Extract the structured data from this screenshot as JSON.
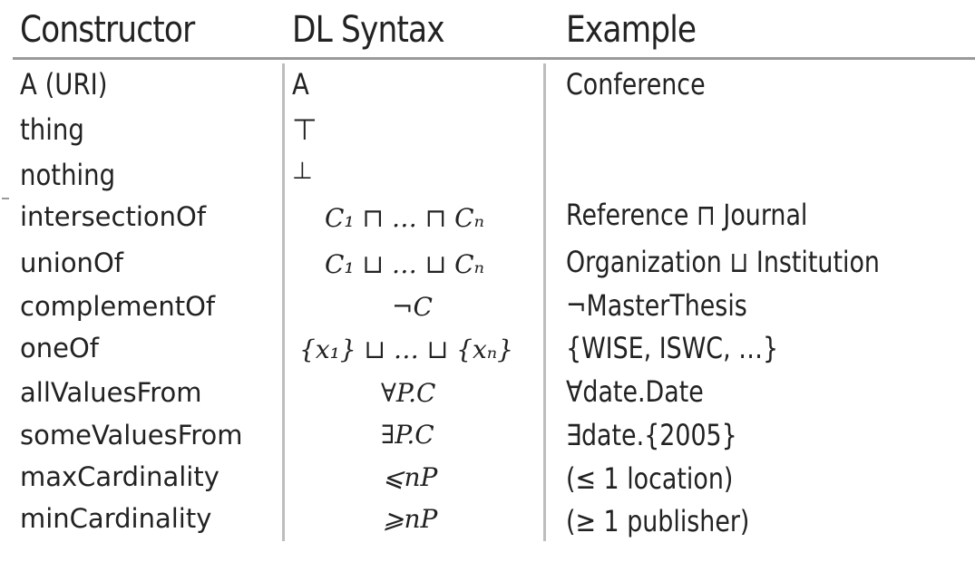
{
  "table": {
    "headers": {
      "constructor": "Constructor",
      "dl_syntax": "DL Syntax",
      "example": "Example"
    },
    "rows": [
      {
        "constructor": "A (URI)",
        "dl": "A",
        "example": "Conference"
      },
      {
        "constructor": "thing",
        "dl": "⊤",
        "example": ""
      },
      {
        "constructor": "nothing",
        "dl": "⊥",
        "example": ""
      },
      {
        "constructor": "intersectionOf",
        "dl": "C₁ ⊓ … ⊓ Cₙ",
        "example": "Reference ⊓ Journal"
      },
      {
        "constructor": "unionOf",
        "dl": "C₁ ⊔ … ⊔ Cₙ",
        "example": "Organization ⊔ Institution"
      },
      {
        "constructor": "complementOf",
        "dl": "¬C",
        "example": "¬MasterThesis"
      },
      {
        "constructor": "oneOf",
        "dl": "{x₁} ⊔ … ⊔ {xₙ}",
        "example": "{WISE, ISWC, …}"
      },
      {
        "constructor": "allValuesFrom",
        "dl": "∀P.C",
        "example": "∀date.Date"
      },
      {
        "constructor": "someValuesFrom",
        "dl": "∃P.C",
        "example": "∃date.{2005}"
      },
      {
        "constructor": "maxCardinality",
        "dl": "⩽nP",
        "example": "(≤ 1 location)"
      },
      {
        "constructor": "minCardinality",
        "dl": "⩾nP",
        "example": "(≥ 1 publisher)"
      }
    ]
  }
}
